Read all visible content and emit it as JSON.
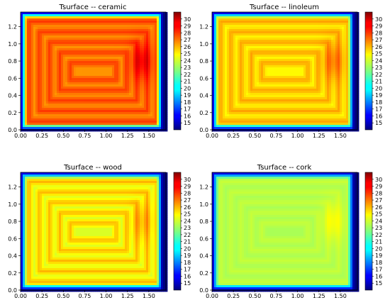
{
  "chart_data": [
    {
      "type": "heatmap",
      "title": "Tsurface -- ceramic",
      "material": "ceramic",
      "core_temp": 29.6,
      "pipe_temp": 28.0,
      "between_temp": 26.4,
      "edge_temp": 14.0,
      "x_range": [
        0,
        1.7
      ],
      "y_range": [
        0,
        1.37
      ],
      "xticks": [
        "0.00",
        "0.25",
        "0.50",
        "0.75",
        "1.00",
        "1.25",
        "1.50"
      ],
      "yticks": [
        "0.0",
        "0.2",
        "0.4",
        "0.6",
        "0.8",
        "1.0",
        "1.2"
      ],
      "colorbar_ticks": [
        "15",
        "16",
        "17",
        "18",
        "19",
        "20",
        "21",
        "22",
        "23",
        "24",
        "25",
        "26",
        "27",
        "28",
        "29",
        "30"
      ],
      "color_range": [
        14,
        31
      ]
    },
    {
      "type": "heatmap",
      "title": "Tsurface -- linoleum",
      "material": "linoleum",
      "core_temp": 27.4,
      "pipe_temp": 26.2,
      "between_temp": 24.7,
      "edge_temp": 14.0,
      "x_range": [
        0,
        1.7
      ],
      "y_range": [
        0,
        1.37
      ],
      "xticks": [
        "0.00",
        "0.25",
        "0.50",
        "0.75",
        "1.00",
        "1.25",
        "1.50"
      ],
      "yticks": [
        "0.0",
        "0.2",
        "0.4",
        "0.6",
        "0.8",
        "1.0",
        "1.2"
      ],
      "colorbar_ticks": [
        "15",
        "16",
        "17",
        "18",
        "19",
        "20",
        "21",
        "22",
        "23",
        "24",
        "25",
        "26",
        "27",
        "28",
        "29",
        "30"
      ],
      "color_range": [
        14,
        31
      ]
    },
    {
      "type": "heatmap",
      "title": "Tsurface -- wood",
      "material": "wood",
      "core_temp": 26.8,
      "pipe_temp": 25.9,
      "between_temp": 24.0,
      "edge_temp": 14.0,
      "x_range": [
        0,
        1.7
      ],
      "y_range": [
        0,
        1.37
      ],
      "xticks": [
        "0.00",
        "0.25",
        "0.50",
        "0.75",
        "1.00",
        "1.25",
        "1.50"
      ],
      "yticks": [
        "0.0",
        "0.2",
        "0.4",
        "0.6",
        "0.8",
        "1.0",
        "1.2"
      ],
      "colorbar_ticks": [
        "15",
        "16",
        "17",
        "18",
        "19",
        "20",
        "21",
        "22",
        "23",
        "24",
        "25",
        "26",
        "27",
        "28",
        "29",
        "30"
      ],
      "color_range": [
        14,
        31
      ]
    },
    {
      "type": "heatmap",
      "title": "Tsurface -- cork",
      "material": "cork",
      "core_temp": 24.6,
      "pipe_temp": 23.7,
      "between_temp": 23.2,
      "edge_temp": 14.0,
      "x_range": [
        0,
        1.7
      ],
      "y_range": [
        0,
        1.37
      ],
      "xticks": [
        "0.00",
        "0.25",
        "0.50",
        "0.75",
        "1.00",
        "1.25",
        "1.50"
      ],
      "yticks": [
        "0.0",
        "0.2",
        "0.4",
        "0.6",
        "0.8",
        "1.0",
        "1.2"
      ],
      "colorbar_ticks": [
        "15",
        "16",
        "17",
        "18",
        "19",
        "20",
        "21",
        "22",
        "23",
        "24",
        "25",
        "26",
        "27",
        "28",
        "29",
        "30"
      ],
      "color_range": [
        14,
        31
      ]
    }
  ],
  "colormap": "jet"
}
